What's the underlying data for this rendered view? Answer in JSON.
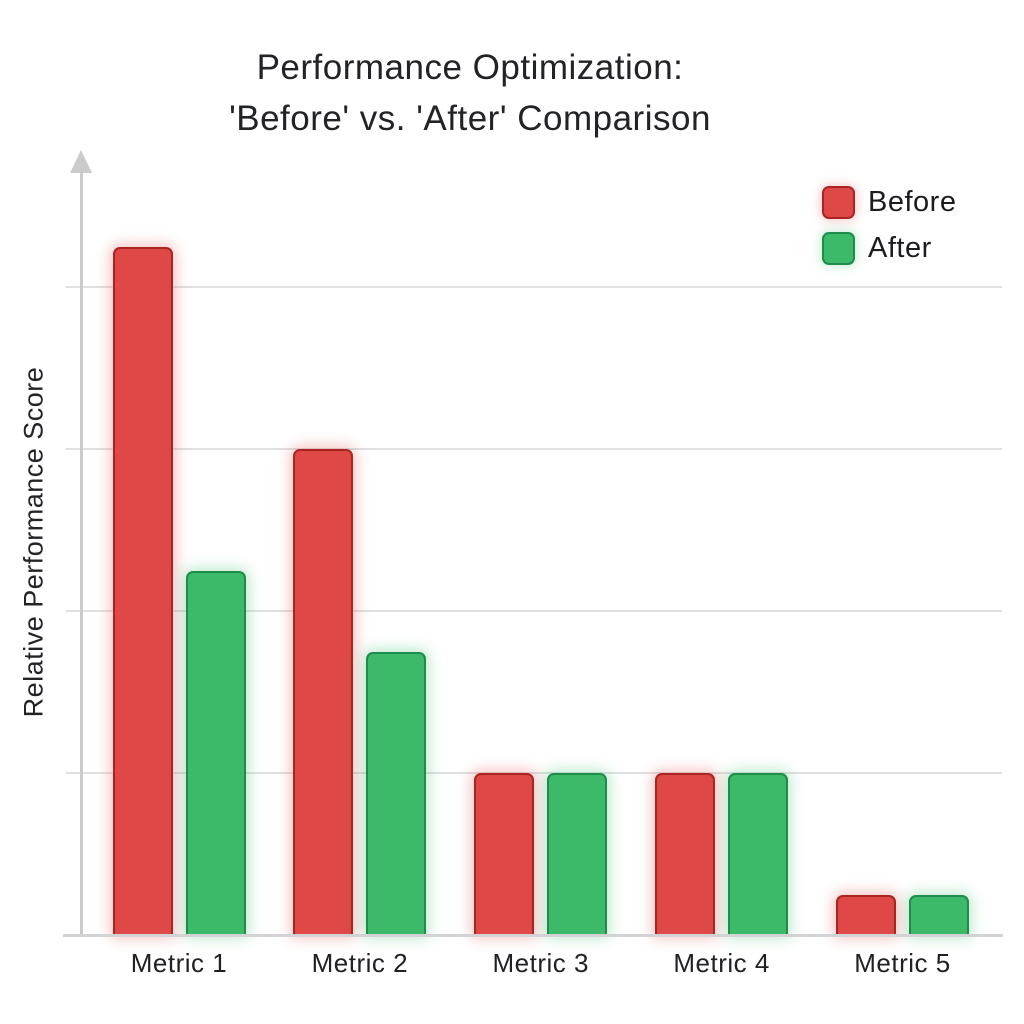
{
  "title": {
    "line1": "Performance Optimization:",
    "line2": "'Before' vs. 'After' Comparison"
  },
  "y_axis_label": "Relative Performance Score",
  "legend": {
    "items": [
      {
        "label": "Before",
        "color": "#de4846",
        "border": "#ab2422"
      },
      {
        "label": "After",
        "color": "#3cba6a",
        "border": "#1e8c4a"
      }
    ]
  },
  "chart_data": {
    "type": "bar",
    "title": "Performance Optimization: 'Before' vs. 'After' Comparison",
    "categories": [
      "Metric 1",
      "Metric 2",
      "Metric 3",
      "Metric 4",
      "Metric 5"
    ],
    "series": [
      {
        "name": "Before",
        "color": "#de4846",
        "border_color": "#ab2422",
        "values": [
          85,
          60,
          20,
          20,
          5
        ]
      },
      {
        "name": "After",
        "color": "#3cba6a",
        "border_color": "#1e8c4a",
        "values": [
          45,
          35,
          20,
          20,
          5
        ]
      }
    ],
    "xlabel": "",
    "ylabel": "Relative Performance Score",
    "ylim": [
      0,
      100
    ],
    "gridline_values": [
      20,
      40,
      60,
      80
    ],
    "grid": true,
    "y_tick_labels": "none",
    "legend_position": "top-right"
  }
}
